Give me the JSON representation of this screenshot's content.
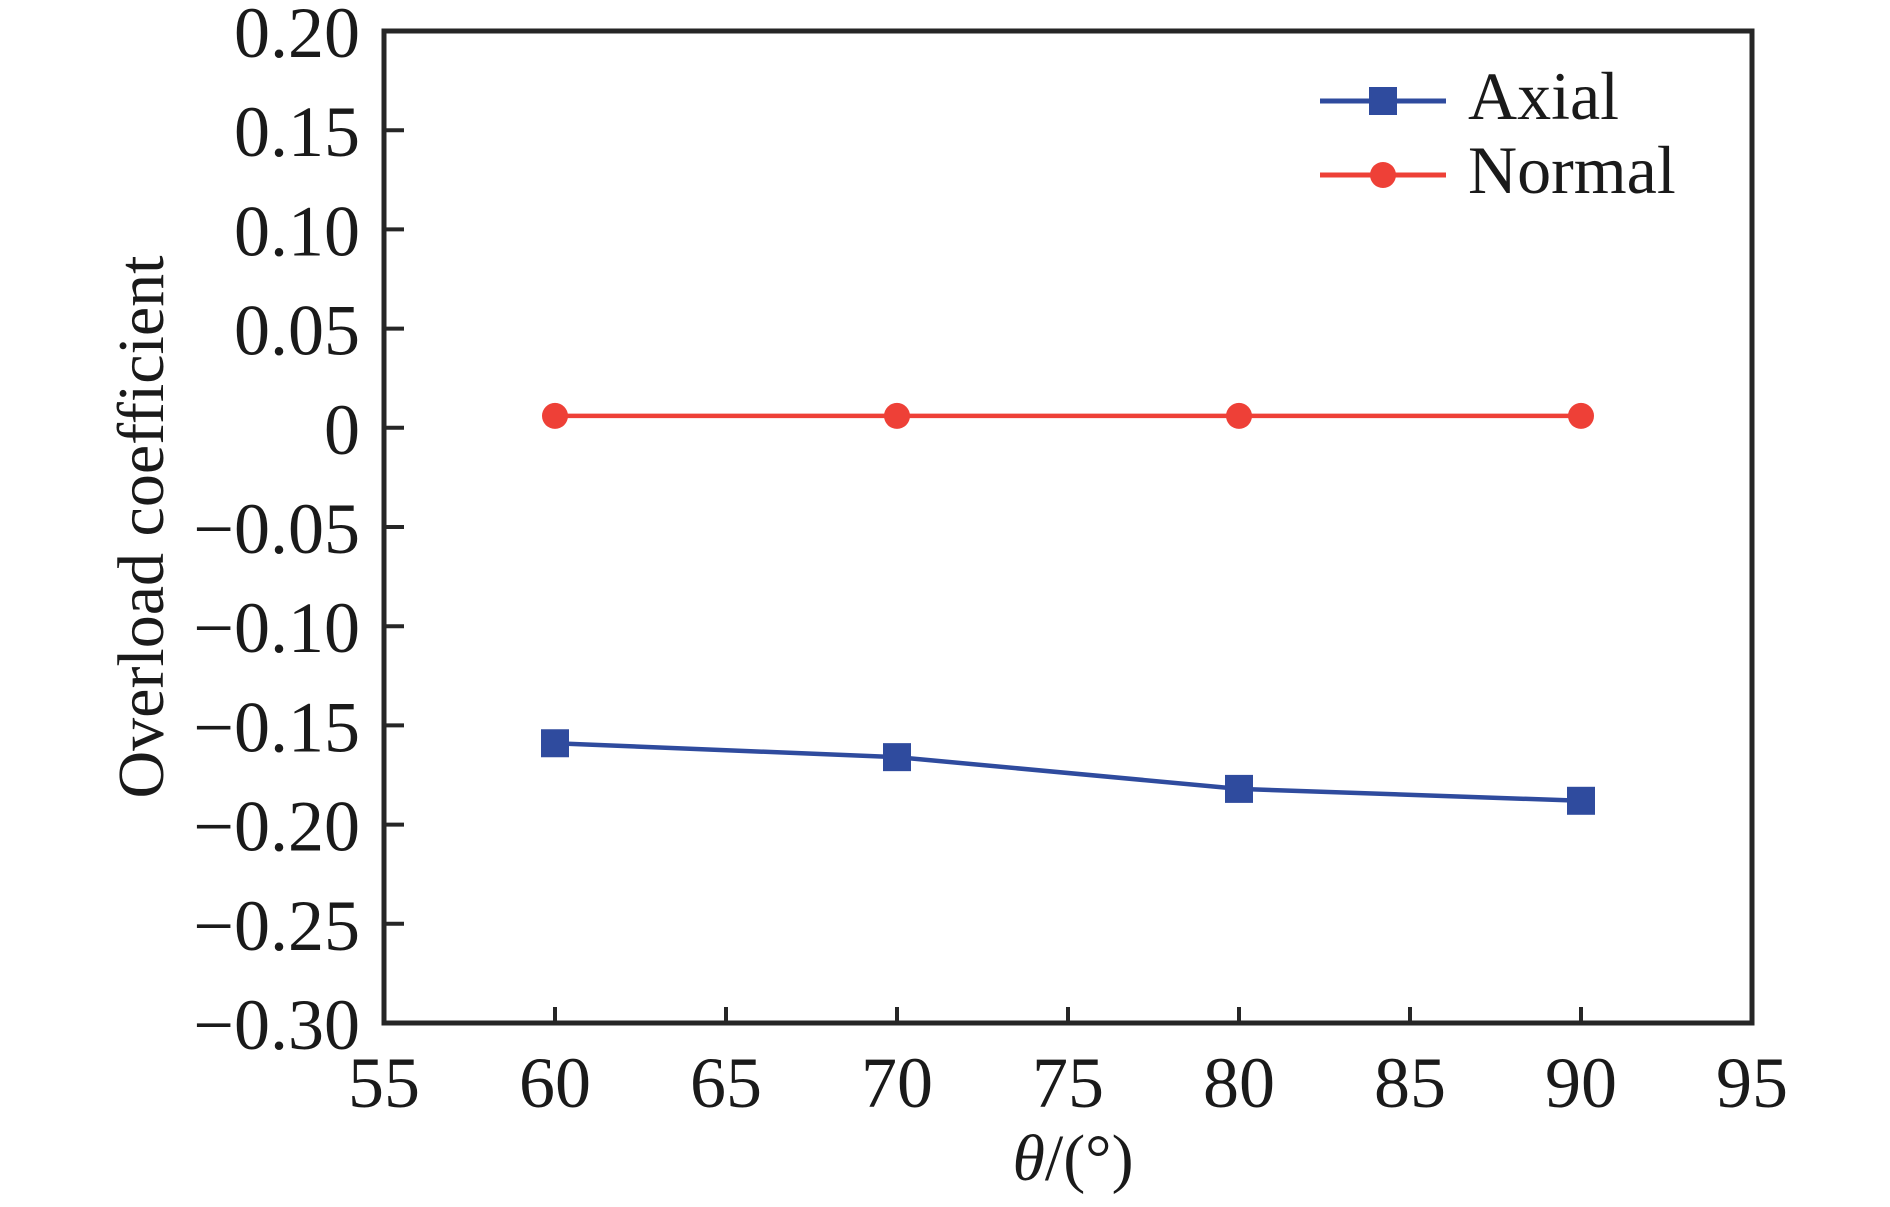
{
  "chart_data": {
    "type": "line",
    "title": "",
    "xlabel": "θ/(°)",
    "xlabel_var": "θ",
    "xlabel_unit": "/(°)",
    "ylabel": "Overload coefficient",
    "x": [
      60,
      70,
      80,
      90
    ],
    "series": [
      {
        "name": "Axial",
        "marker": "square",
        "color": "#2F4B9E",
        "values": [
          -0.159,
          -0.166,
          -0.182,
          -0.188
        ]
      },
      {
        "name": "Normal",
        "marker": "circle",
        "color": "#EE4037",
        "values": [
          0.006,
          0.006,
          0.006,
          0.006
        ]
      }
    ],
    "xlim": [
      55,
      95
    ],
    "ylim": [
      -0.3,
      0.2
    ],
    "xticks": [
      55,
      60,
      65,
      70,
      75,
      80,
      85,
      90,
      95
    ],
    "xtick_labels": [
      "55",
      "60",
      "65",
      "70",
      "75",
      "80",
      "85",
      "90",
      "95"
    ],
    "yticks": [
      -0.3,
      -0.25,
      -0.2,
      -0.15,
      -0.1,
      -0.05,
      0,
      0.05,
      0.1,
      0.15,
      0.2
    ],
    "ytick_labels": [
      "−0.30",
      "−0.25",
      "−0.20",
      "−0.15",
      "−0.10",
      "−0.05",
      "0",
      "0.05",
      "0.10",
      "0.15",
      "0.20"
    ],
    "grid": false,
    "legend_position": "top-right"
  },
  "colors": {
    "axis": "#262626",
    "text": "#1a1a1a",
    "background": "#ffffff"
  }
}
